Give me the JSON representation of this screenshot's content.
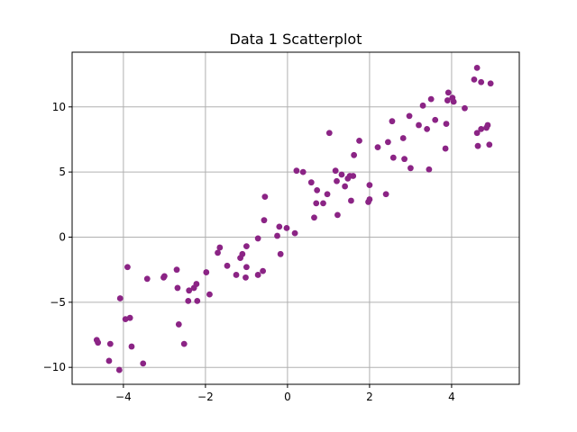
{
  "chart_data": {
    "type": "scatter",
    "title": "Data 1 Scatterplot",
    "xlabel": "",
    "ylabel": "",
    "xlim": [
      -5.25,
      5.65
    ],
    "ylim": [
      -11.3,
      14.2
    ],
    "xticks": [
      -4,
      -2,
      0,
      2,
      4
    ],
    "yticks": [
      -10,
      -5,
      0,
      5,
      10
    ],
    "xtick_labels": [
      "−4",
      "−2",
      "0",
      "2",
      "4"
    ],
    "ytick_labels": [
      "−10",
      "−5",
      "0",
      "5",
      "10"
    ],
    "grid": true,
    "marker_color": "#8b2485",
    "points": [
      {
        "x": -4.65,
        "y": -7.9
      },
      {
        "x": -4.62,
        "y": -8.1
      },
      {
        "x": -4.35,
        "y": -9.5
      },
      {
        "x": -4.32,
        "y": -8.2
      },
      {
        "x": -4.1,
        "y": -10.2
      },
      {
        "x": -4.08,
        "y": -4.7
      },
      {
        "x": -3.95,
        "y": -6.3
      },
      {
        "x": -3.9,
        "y": -2.3
      },
      {
        "x": -3.84,
        "y": -6.2
      },
      {
        "x": -3.8,
        "y": -8.4
      },
      {
        "x": -3.52,
        "y": -9.7
      },
      {
        "x": -3.42,
        "y": -3.2
      },
      {
        "x": -3.02,
        "y": -3.1
      },
      {
        "x": -3.0,
        "y": -3.0
      },
      {
        "x": -2.7,
        "y": -2.5
      },
      {
        "x": -2.68,
        "y": -3.9
      },
      {
        "x": -2.65,
        "y": -6.7
      },
      {
        "x": -2.52,
        "y": -8.2
      },
      {
        "x": -2.42,
        "y": -4.9
      },
      {
        "x": -2.4,
        "y": -4.1
      },
      {
        "x": -2.28,
        "y": -3.9
      },
      {
        "x": -2.22,
        "y": -3.6
      },
      {
        "x": -2.2,
        "y": -4.9
      },
      {
        "x": -1.98,
        "y": -2.7
      },
      {
        "x": -1.9,
        "y": -4.4
      },
      {
        "x": -1.7,
        "y": -1.2
      },
      {
        "x": -1.65,
        "y": -0.8
      },
      {
        "x": -1.47,
        "y": -2.2
      },
      {
        "x": -1.25,
        "y": -2.9
      },
      {
        "x": -1.15,
        "y": -1.6
      },
      {
        "x": -1.1,
        "y": -1.3
      },
      {
        "x": -1.02,
        "y": -3.1
      },
      {
        "x": -1.0,
        "y": -2.3
      },
      {
        "x": -1.0,
        "y": -0.7
      },
      {
        "x": -0.72,
        "y": -2.9
      },
      {
        "x": -0.72,
        "y": -0.1
      },
      {
        "x": -0.6,
        "y": -2.6
      },
      {
        "x": -0.57,
        "y": 1.3
      },
      {
        "x": -0.55,
        "y": 3.1
      },
      {
        "x": -0.25,
        "y": 0.1
      },
      {
        "x": -0.2,
        "y": 0.8
      },
      {
        "x": -0.17,
        "y": -1.3
      },
      {
        "x": -0.02,
        "y": 0.7
      },
      {
        "x": 0.18,
        "y": 0.3
      },
      {
        "x": 0.22,
        "y": 5.1
      },
      {
        "x": 0.38,
        "y": 5.0
      },
      {
        "x": 0.58,
        "y": 4.2
      },
      {
        "x": 0.65,
        "y": 1.5
      },
      {
        "x": 0.7,
        "y": 2.6
      },
      {
        "x": 0.72,
        "y": 3.6
      },
      {
        "x": 0.87,
        "y": 2.6
      },
      {
        "x": 0.97,
        "y": 3.3
      },
      {
        "x": 1.02,
        "y": 8.0
      },
      {
        "x": 1.17,
        "y": 5.1
      },
      {
        "x": 1.2,
        "y": 4.3
      },
      {
        "x": 1.22,
        "y": 1.7
      },
      {
        "x": 1.32,
        "y": 4.8
      },
      {
        "x": 1.4,
        "y": 3.9
      },
      {
        "x": 1.47,
        "y": 4.5
      },
      {
        "x": 1.52,
        "y": 4.7
      },
      {
        "x": 1.55,
        "y": 2.8
      },
      {
        "x": 1.6,
        "y": 4.7
      },
      {
        "x": 1.62,
        "y": 6.3
      },
      {
        "x": 1.75,
        "y": 7.4
      },
      {
        "x": 1.97,
        "y": 2.7
      },
      {
        "x": 2.0,
        "y": 2.9
      },
      {
        "x": 2.0,
        "y": 4.0
      },
      {
        "x": 2.2,
        "y": 6.9
      },
      {
        "x": 2.4,
        "y": 3.3
      },
      {
        "x": 2.45,
        "y": 7.3
      },
      {
        "x": 2.55,
        "y": 8.9
      },
      {
        "x": 2.58,
        "y": 6.1
      },
      {
        "x": 2.82,
        "y": 7.6
      },
      {
        "x": 2.85,
        "y": 6.0
      },
      {
        "x": 2.97,
        "y": 9.3
      },
      {
        "x": 3.0,
        "y": 5.3
      },
      {
        "x": 3.2,
        "y": 8.6
      },
      {
        "x": 3.3,
        "y": 10.1
      },
      {
        "x": 3.4,
        "y": 8.3
      },
      {
        "x": 3.45,
        "y": 5.2
      },
      {
        "x": 3.5,
        "y": 10.6
      },
      {
        "x": 3.6,
        "y": 9.0
      },
      {
        "x": 3.85,
        "y": 6.8
      },
      {
        "x": 3.87,
        "y": 8.7
      },
      {
        "x": 3.9,
        "y": 10.5
      },
      {
        "x": 3.92,
        "y": 11.1
      },
      {
        "x": 4.02,
        "y": 10.7
      },
      {
        "x": 4.05,
        "y": 10.4
      },
      {
        "x": 4.32,
        "y": 9.9
      },
      {
        "x": 4.55,
        "y": 12.1
      },
      {
        "x": 4.62,
        "y": 13.0
      },
      {
        "x": 4.62,
        "y": 8.0
      },
      {
        "x": 4.64,
        "y": 7.0
      },
      {
        "x": 4.72,
        "y": 8.3
      },
      {
        "x": 4.72,
        "y": 11.9
      },
      {
        "x": 4.85,
        "y": 8.4
      },
      {
        "x": 4.88,
        "y": 8.6
      },
      {
        "x": 4.92,
        "y": 7.1
      },
      {
        "x": 4.95,
        "y": 11.8
      }
    ]
  }
}
